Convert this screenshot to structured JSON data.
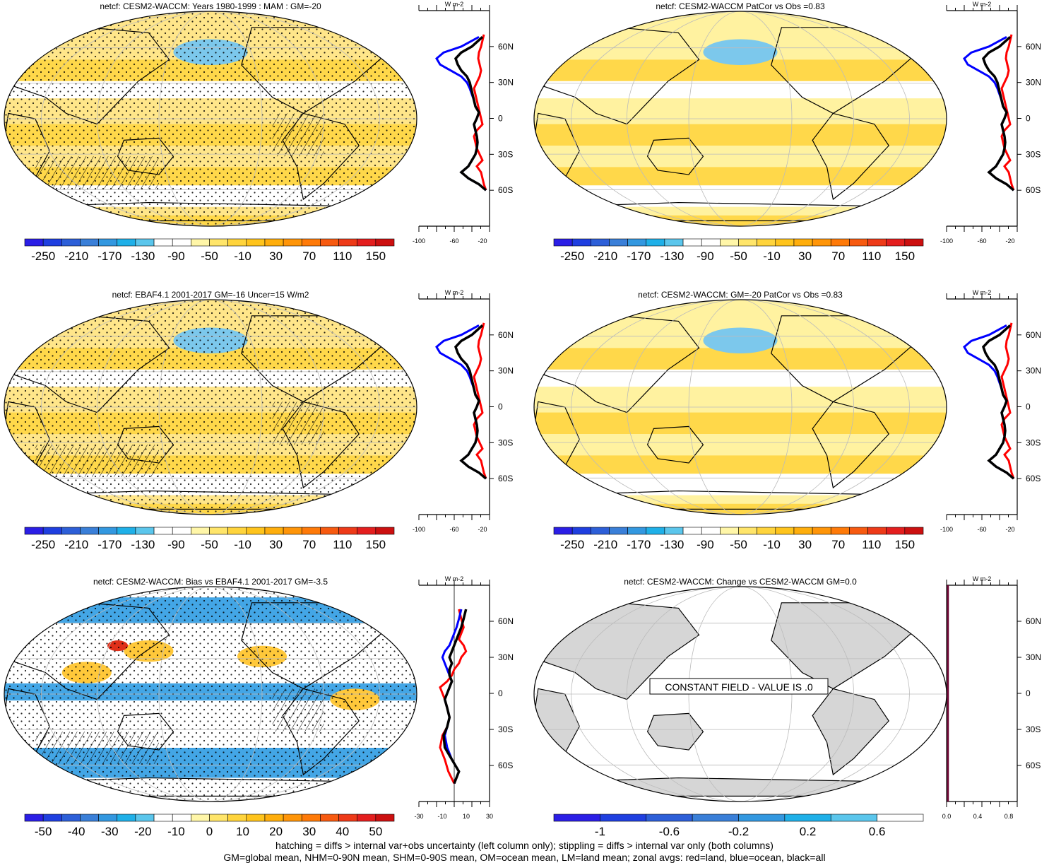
{
  "panels": [
    {
      "title": "netcf: CESM2-WACCM: Years 1980-1999 : MAM : GM=-20",
      "kind": "model",
      "hatch": true
    },
    {
      "title": "netcf: CESM2-WACCM PatCor vs Obs =0.83",
      "kind": "model_smooth",
      "hatch": false
    },
    {
      "title": "netcf: EBAF4.1 2001-2017 GM=-16 Uncer=15 W/m2",
      "kind": "obs",
      "hatch": true
    },
    {
      "title": "netcf: CESM2-WACCM: GM=-20 PatCor vs Obs =0.83",
      "kind": "model_smooth",
      "hatch": false
    },
    {
      "title": "netcf: CESM2-WACCM: Bias vs EBAF4.1 2001-2017 GM=-3.5",
      "kind": "bias",
      "hatch": true
    },
    {
      "title": "netcf: CESM2-WACCM: Change vs CESM2-WACCM GM=0.0",
      "kind": "constant",
      "hatch": false,
      "constant_label": "CONSTANT FIELD - VALUE IS .0"
    }
  ],
  "colorbars": [
    {
      "labels": [
        "-250",
        "-210",
        "-170",
        "-130",
        "-90",
        "-50",
        "-10",
        "30",
        "70",
        "110",
        "150"
      ],
      "colors": [
        "#2b1ee6",
        "#1f3fe0",
        "#2d5fd8",
        "#3a7fd8",
        "#3398e0",
        "#1fb0e8",
        "#5bc6ec",
        "#ffffff",
        "#ffffff",
        "#fff6a8",
        "#ffe56a",
        "#ffd43c",
        "#ffc41c",
        "#ffae0c",
        "#ff9508",
        "#ff7a08",
        "#f75a10",
        "#ee3a18",
        "#e41e1e",
        "#cc1010"
      ]
    },
    {
      "labels": [
        "-50",
        "-40",
        "-30",
        "-20",
        "-10",
        "0",
        "10",
        "20",
        "30",
        "40",
        "50"
      ],
      "colors": [
        "#2b1ee6",
        "#1f3fe0",
        "#2d5fd8",
        "#3a7fd8",
        "#3398e0",
        "#1fb0e8",
        "#5bc6ec",
        "#ffffff",
        "#ffffff",
        "#fff6a8",
        "#ffe56a",
        "#ffd43c",
        "#ffc41c",
        "#ffae0c",
        "#ff9508",
        "#ff7a08",
        "#f75a10",
        "#ee3a18",
        "#e41e1e",
        "#cc1010"
      ]
    },
    {
      "labels": [
        "-1",
        "-0.6",
        "-0.2",
        "0.2",
        "0.6"
      ],
      "colors": [
        "#2b1ee6",
        "#1f3fe0",
        "#2d5fd8",
        "#3a7fd8",
        "#3398e0",
        "#1fb0e8",
        "#5bc6ec",
        "#ffffff"
      ]
    }
  ],
  "zonal_axes": {
    "lat_labels": [
      "60N",
      "30N",
      "0",
      "30S",
      "60S"
    ],
    "units": "W m-2",
    "x_labels_main": [
      "-100",
      "-60",
      "-20"
    ],
    "x_labels_bias": [
      "-30",
      "-10",
      "10",
      "30"
    ],
    "x_labels_change": [
      "0.0",
      "0.4",
      "0.8"
    ]
  },
  "chart_data": [
    {
      "type": "line",
      "xlabel": "",
      "ylabel": "",
      "xlim": [
        -100,
        0
      ],
      "ylim": [
        -90,
        90
      ],
      "series": [
        {
          "name": "land",
          "color": "#ff0000",
          "x": [
            -5,
            -8,
            -10,
            -12,
            -18,
            -10,
            -14,
            -18,
            -20,
            -22,
            -18,
            -10,
            -12,
            -14,
            -16,
            -18,
            -20,
            -22,
            -18,
            -14,
            -12,
            -14,
            -16,
            -15,
            -12,
            -10,
            -8
          ],
          "y": [
            -60,
            -55,
            -50,
            -45,
            -40,
            -35,
            -30,
            -25,
            -20,
            -15,
            -10,
            -5,
            0,
            5,
            10,
            15,
            20,
            25,
            30,
            35,
            40,
            45,
            50,
            55,
            60,
            65,
            70
          ]
        },
        {
          "name": "ocean",
          "color": "#0000ff",
          "x": [
            -5,
            -15,
            -30,
            -40,
            -30,
            -25,
            -20,
            -18,
            -17,
            -18,
            -20,
            -22,
            -18,
            -15,
            -20,
            -22,
            -25,
            -28,
            -32,
            -40,
            -55,
            -70,
            -75,
            -65,
            -40,
            -15
          ],
          "y": [
            -60,
            -55,
            -50,
            -45,
            -40,
            -35,
            -30,
            -25,
            -20,
            -15,
            -10,
            -5,
            0,
            5,
            10,
            15,
            20,
            25,
            30,
            35,
            40,
            45,
            50,
            55,
            60,
            68
          ]
        },
        {
          "name": "all",
          "color": "#000000",
          "x": [
            -5,
            -15,
            -30,
            -40,
            -30,
            -25,
            -20,
            -18,
            -17,
            -18,
            -20,
            -22,
            -18,
            -15,
            -20,
            -22,
            -24,
            -26,
            -28,
            -32,
            -40,
            -45,
            -48,
            -40,
            -25,
            -10
          ],
          "y": [
            -60,
            -55,
            -50,
            -45,
            -40,
            -35,
            -30,
            -25,
            -20,
            -15,
            -10,
            -5,
            0,
            5,
            10,
            15,
            20,
            25,
            30,
            35,
            40,
            45,
            50,
            55,
            60,
            68
          ]
        }
      ]
    },
    {
      "type": "line",
      "xlabel": "",
      "ylabel": "",
      "xlim": [
        -30,
        30
      ],
      "ylim": [
        -90,
        90
      ],
      "series": [
        {
          "name": "land",
          "color": "#ff0000",
          "x": [
            0,
            -5,
            -8,
            -12,
            -10,
            -6,
            -4,
            -6,
            -8,
            -10,
            -12,
            -6,
            -2,
            0,
            4,
            6,
            10,
            8,
            4,
            6,
            8,
            6,
            4
          ],
          "y": [
            -75,
            -65,
            -55,
            -45,
            -35,
            -28,
            -20,
            -12,
            -5,
            0,
            5,
            10,
            15,
            20,
            25,
            30,
            35,
            40,
            45,
            50,
            55,
            62,
            70
          ]
        },
        {
          "name": "ocean",
          "color": "#0000ff",
          "x": [
            0,
            4,
            -2,
            -6,
            -8,
            -6,
            -4,
            -6,
            -8,
            -6,
            -4,
            -2,
            -4,
            -6,
            -8,
            -10,
            -8,
            -4,
            -2,
            0,
            2,
            4,
            6
          ],
          "y": [
            -75,
            -65,
            -55,
            -45,
            -35,
            -28,
            -20,
            -12,
            -5,
            0,
            5,
            10,
            15,
            20,
            25,
            30,
            35,
            40,
            45,
            50,
            55,
            62,
            70
          ]
        },
        {
          "name": "all",
          "color": "#000000",
          "x": [
            0,
            4,
            -2,
            -8,
            -9,
            -6,
            -4,
            -6,
            -8,
            -6,
            -4,
            -2,
            -4,
            -4,
            -2,
            -4,
            -2,
            0,
            2,
            4,
            6,
            8,
            10
          ],
          "y": [
            -75,
            -65,
            -55,
            -45,
            -35,
            -28,
            -20,
            -12,
            -5,
            0,
            5,
            10,
            15,
            20,
            25,
            30,
            35,
            40,
            45,
            50,
            55,
            62,
            70
          ]
        }
      ]
    }
  ],
  "footer": [
    "hatching = diffs > internal var+obs uncertainty (left column only); stippling = diffs > internal var only (both columns)",
    "GM=global mean, NHM=0-90N mean, SHM=0-90S mean, OM=ocean mean, LM=land mean; zonal avgs: red=land, blue=ocean, black=all"
  ]
}
